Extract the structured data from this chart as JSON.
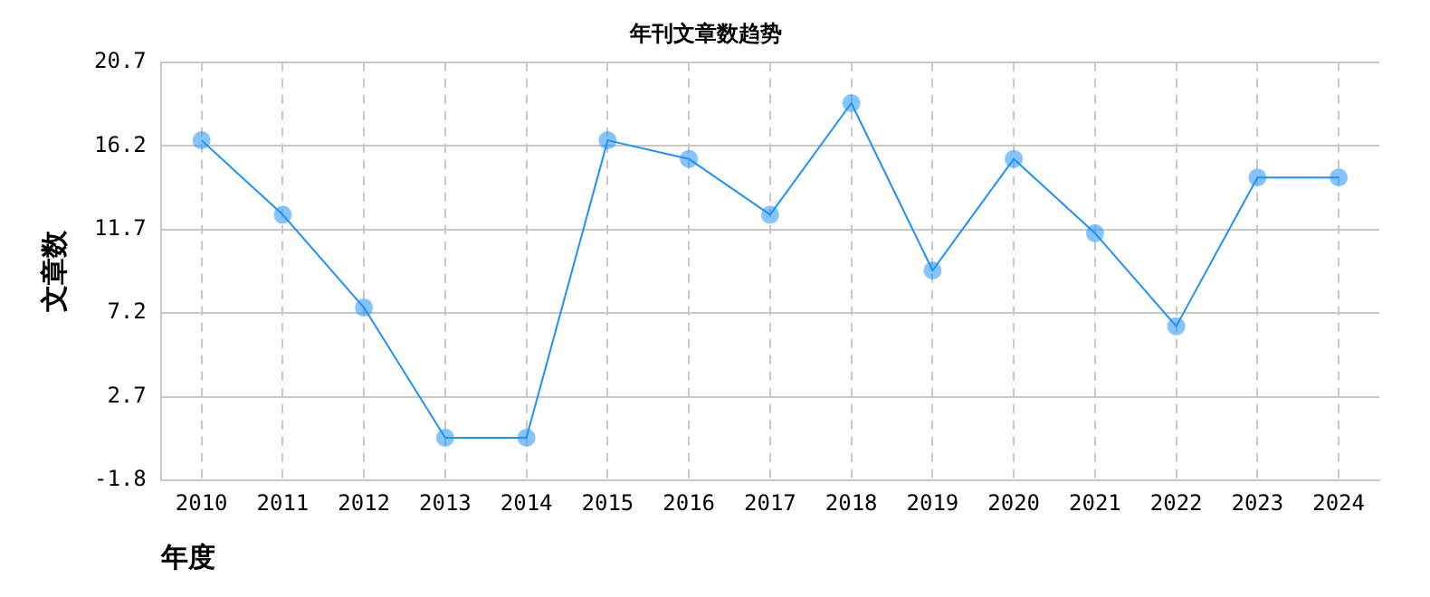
{
  "chart_data": {
    "type": "line",
    "title": "年刊文章数趋势",
    "xlabel": "年度",
    "ylabel": "文章数",
    "categories": [
      "2010",
      "2011",
      "2012",
      "2013",
      "2014",
      "2015",
      "2016",
      "2017",
      "2018",
      "2019",
      "2020",
      "2021",
      "2022",
      "2023",
      "2024"
    ],
    "series": [
      {
        "color": "#1e90ff",
        "values": [
          16.5,
          12.5,
          7.5,
          0.5,
          0.5,
          16.5,
          15.5,
          12.5,
          18.5,
          9.5,
          15.5,
          11.5,
          6.5,
          14.5,
          14.5
        ]
      }
    ],
    "ylim": [
      -1.8,
      20.7
    ],
    "yticks": [
      -1.8,
      2.7,
      7.2,
      11.7,
      16.2,
      20.7
    ],
    "grid": true,
    "marker": "circle",
    "line_style": "solid",
    "legend": false
  }
}
